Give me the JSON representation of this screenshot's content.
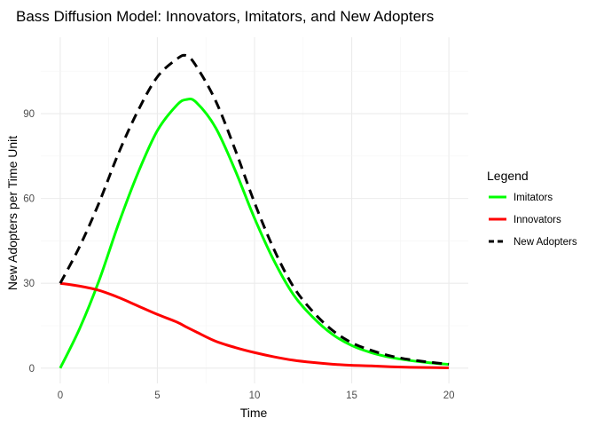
{
  "chart_data": {
    "type": "line",
    "title": "Bass Diffusion Model: Innovators, Imitators, and New Adopters",
    "xlabel": "Time",
    "ylabel": "New Adopters per Time Unit",
    "xlim": [
      -1,
      21
    ],
    "ylim": [
      -5.4,
      117
    ],
    "x_ticks": [
      0,
      5,
      10,
      15,
      20
    ],
    "y_ticks": [
      0,
      30,
      60,
      90
    ],
    "grid": true,
    "legend": {
      "title": "Legend",
      "position": "right"
    },
    "x": [
      0,
      1,
      2,
      3,
      4,
      5,
      6,
      6.5,
      7,
      8,
      9,
      10,
      11,
      12,
      13,
      14,
      15,
      16,
      17,
      18,
      19,
      20
    ],
    "series": [
      {
        "name": "Imitators",
        "color": "#00ff00",
        "dash": "solid",
        "values": [
          0,
          14,
          31,
          51,
          69,
          84,
          93,
          95,
          94,
          85,
          70,
          53,
          38,
          26,
          18,
          12,
          8,
          5.5,
          3.8,
          2.7,
          1.9,
          1.3
        ]
      },
      {
        "name": "Innovators",
        "color": "#ff0000",
        "dash": "solid",
        "values": [
          30,
          29,
          27.5,
          25,
          22,
          19,
          16.3,
          14.5,
          12.8,
          9.5,
          7.3,
          5.5,
          4,
          2.8,
          2,
          1.4,
          1,
          0.8,
          0.5,
          0.3,
          0.2,
          0.1
        ]
      },
      {
        "name": "New Adopters",
        "color": "#000000",
        "dash": "dashed",
        "values": [
          30,
          43,
          58.5,
          76,
          91,
          103,
          109.3,
          110.5,
          106.8,
          94.5,
          77.3,
          58.5,
          42,
          28.8,
          20,
          13.4,
          9,
          6.3,
          4.3,
          3,
          2.1,
          1.4
        ]
      }
    ]
  }
}
